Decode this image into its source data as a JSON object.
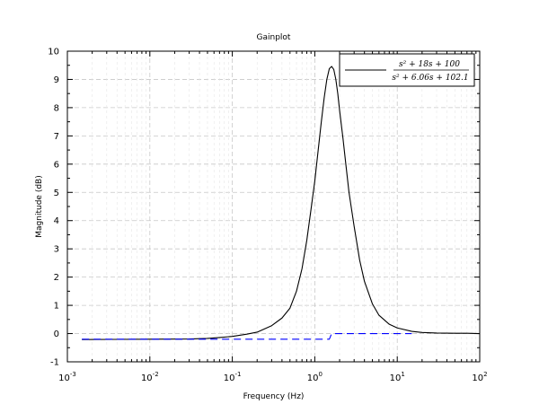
{
  "chart_data": {
    "type": "line",
    "title": "Gainplot",
    "xlabel": "Frequency (Hz)",
    "ylabel": "Magnitude (dB)",
    "xscale": "log",
    "xlim": [
      0.001,
      100
    ],
    "ylim": [
      -1,
      10
    ],
    "grid": true,
    "legend_position": "top-right",
    "x_tick_labels": [
      {
        "value": 0.001,
        "base": "10",
        "exp": "-3"
      },
      {
        "value": 0.01,
        "base": "10",
        "exp": "-2"
      },
      {
        "value": 0.1,
        "base": "10",
        "exp": "-1"
      },
      {
        "value": 1,
        "base": "10",
        "exp": "0"
      },
      {
        "value": 10,
        "base": "10",
        "exp": "1"
      },
      {
        "value": 100,
        "base": "10",
        "exp": "2"
      }
    ],
    "y_tick_labels": [
      "-1",
      "0",
      "1",
      "2",
      "3",
      "4",
      "5",
      "6",
      "7",
      "8",
      "9",
      "10"
    ],
    "legend": {
      "numerator": "s² + 18s + 100",
      "denominator": "s² + 6.06s + 102.1"
    },
    "series": [
      {
        "color": "#000000",
        "style": "solid",
        "points": [
          [
            0.0015,
            -0.21
          ],
          [
            0.01,
            -0.2
          ],
          [
            0.03,
            -0.19
          ],
          [
            0.05,
            -0.17
          ],
          [
            0.07,
            -0.14
          ],
          [
            0.1,
            -0.1
          ],
          [
            0.15,
            -0.02
          ],
          [
            0.2,
            0.05
          ],
          [
            0.3,
            0.28
          ],
          [
            0.4,
            0.55
          ],
          [
            0.5,
            0.9
          ],
          [
            0.6,
            1.5
          ],
          [
            0.7,
            2.3
          ],
          [
            0.8,
            3.3
          ],
          [
            0.9,
            4.4
          ],
          [
            1.0,
            5.4
          ],
          [
            1.1,
            6.5
          ],
          [
            1.2,
            7.5
          ],
          [
            1.3,
            8.35
          ],
          [
            1.4,
            9.0
          ],
          [
            1.5,
            9.38
          ],
          [
            1.6,
            9.46
          ],
          [
            1.7,
            9.35
          ],
          [
            1.8,
            9.0
          ],
          [
            1.9,
            8.5
          ],
          [
            2.0,
            7.9
          ],
          [
            2.2,
            6.9
          ],
          [
            2.4,
            5.9
          ],
          [
            2.6,
            5.0
          ],
          [
            3.0,
            3.8
          ],
          [
            3.5,
            2.6
          ],
          [
            4.0,
            1.85
          ],
          [
            5.0,
            1.05
          ],
          [
            6.0,
            0.65
          ],
          [
            8.0,
            0.33
          ],
          [
            10,
            0.2
          ],
          [
            15,
            0.08
          ],
          [
            20,
            0.04
          ],
          [
            30,
            0.02
          ],
          [
            50,
            0.01
          ],
          [
            70,
            0.01
          ],
          [
            100,
            0.0
          ]
        ]
      },
      {
        "color": "#0000ff",
        "style": "dashed",
        "points": [
          [
            0.0015,
            -0.2
          ],
          [
            0.3,
            -0.2
          ],
          [
            1.5,
            -0.2
          ],
          [
            1.6,
            0.0
          ],
          [
            15,
            0.0
          ]
        ]
      }
    ]
  }
}
